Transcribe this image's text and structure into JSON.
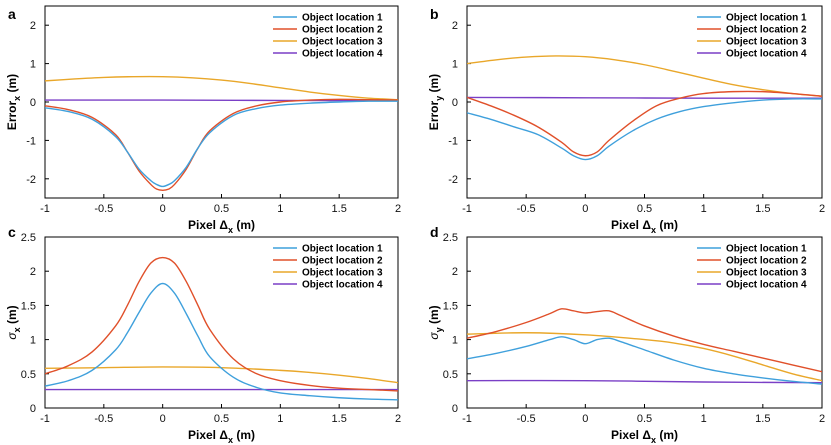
{
  "chart_data": [
    {
      "panel": "a",
      "type": "line",
      "xlabel_main": "Pixel Δ",
      "xlabel_sub": "x",
      "xlabel_unit": " (m)",
      "ylabel_main": "Error",
      "ylabel_sub": "x",
      "ylabel_unit": " (m)",
      "ylabel_greek": false,
      "xlim": [
        -1,
        2
      ],
      "ylim": [
        -2.5,
        2.5
      ],
      "xticks": [
        -1,
        -0.5,
        0,
        0.5,
        1,
        1.5,
        2
      ],
      "xtick_labels": [
        "-1",
        "-0.5",
        "0",
        "0.5",
        "1",
        "1.5",
        "2"
      ],
      "yticks": [
        -2,
        -1,
        0,
        1,
        2
      ],
      "ytick_labels": [
        "-2",
        "-1",
        "0",
        "1",
        "2"
      ],
      "series": [
        {
          "name": "Object location 1",
          "color": "#3fa0dc",
          "x": [
            -1,
            -0.8,
            -0.6,
            -0.4,
            -0.3,
            -0.2,
            -0.1,
            -0.05,
            0,
            0.05,
            0.1,
            0.2,
            0.3,
            0.4,
            0.6,
            0.8,
            1,
            1.25,
            1.5,
            1.75,
            2
          ],
          "y": [
            -0.15,
            -0.25,
            -0.45,
            -0.9,
            -1.3,
            -1.75,
            -2.05,
            -2.15,
            -2.2,
            -2.15,
            -2.05,
            -1.7,
            -1.2,
            -0.8,
            -0.35,
            -0.17,
            -0.08,
            -0.03,
            0,
            0.02,
            0.02
          ]
        },
        {
          "name": "Object location 2",
          "color": "#e0502a",
          "x": [
            -1,
            -0.8,
            -0.6,
            -0.4,
            -0.3,
            -0.2,
            -0.1,
            -0.05,
            0,
            0.05,
            0.1,
            0.2,
            0.3,
            0.4,
            0.6,
            0.8,
            1,
            1.25,
            1.5,
            1.75,
            2
          ],
          "y": [
            -0.1,
            -0.2,
            -0.4,
            -0.85,
            -1.3,
            -1.8,
            -2.15,
            -2.27,
            -2.3,
            -2.27,
            -2.15,
            -1.75,
            -1.2,
            -0.75,
            -0.3,
            -0.1,
            0,
            0.05,
            0.07,
            0.06,
            0.05
          ]
        },
        {
          "name": "Object location 3",
          "color": "#e9a72a",
          "x": [
            -1,
            -0.75,
            -0.5,
            -0.25,
            0,
            0.25,
            0.5,
            0.75,
            1,
            1.25,
            1.5,
            1.75,
            2
          ],
          "y": [
            0.55,
            0.6,
            0.64,
            0.66,
            0.66,
            0.63,
            0.57,
            0.48,
            0.37,
            0.26,
            0.17,
            0.1,
            0.06
          ]
        },
        {
          "name": "Object location 4",
          "color": "#7a3fc6",
          "x": [
            -1,
            0,
            1,
            2
          ],
          "y": [
            0.05,
            0.05,
            0.04,
            0.03
          ]
        }
      ]
    },
    {
      "panel": "b",
      "type": "line",
      "xlabel_main": "Pixel Δ",
      "xlabel_sub": "x",
      "xlabel_unit": " (m)",
      "ylabel_main": "Error",
      "ylabel_sub": "y",
      "ylabel_unit": " (m)",
      "ylabel_greek": false,
      "xlim": [
        -1,
        2
      ],
      "ylim": [
        -2.5,
        2.5
      ],
      "xticks": [
        -1,
        -0.5,
        0,
        0.5,
        1,
        1.5,
        2
      ],
      "xtick_labels": [
        "-1",
        "-0.5",
        "0",
        "0.5",
        "1",
        "1.5",
        "2"
      ],
      "yticks": [
        -2,
        -1,
        0,
        1,
        2
      ],
      "ytick_labels": [
        "-2",
        "-1",
        "0",
        "1",
        "2"
      ],
      "series": [
        {
          "name": "Object location 1",
          "color": "#3fa0dc",
          "x": [
            -1,
            -0.8,
            -0.6,
            -0.4,
            -0.2,
            -0.1,
            0,
            0.1,
            0.2,
            0.4,
            0.6,
            0.8,
            1,
            1.25,
            1.5,
            1.75,
            2
          ],
          "y": [
            -0.28,
            -0.45,
            -0.65,
            -0.85,
            -1.2,
            -1.4,
            -1.5,
            -1.4,
            -1.15,
            -0.75,
            -0.45,
            -0.25,
            -0.12,
            -0.02,
            0.05,
            0.08,
            0.08
          ]
        },
        {
          "name": "Object location 2",
          "color": "#e0502a",
          "x": [
            -1,
            -0.8,
            -0.6,
            -0.4,
            -0.2,
            -0.1,
            0,
            0.1,
            0.2,
            0.4,
            0.6,
            0.8,
            1,
            1.25,
            1.5,
            1.75,
            2
          ],
          "y": [
            0.12,
            -0.1,
            -0.35,
            -0.65,
            -1.05,
            -1.3,
            -1.4,
            -1.3,
            -1.0,
            -0.5,
            -0.1,
            0.1,
            0.22,
            0.27,
            0.27,
            0.22,
            0.15
          ]
        },
        {
          "name": "Object location 3",
          "color": "#e9a72a",
          "x": [
            -1,
            -0.75,
            -0.5,
            -0.25,
            0,
            0.25,
            0.5,
            0.75,
            1,
            1.25,
            1.5,
            1.75,
            2
          ],
          "y": [
            1.0,
            1.1,
            1.17,
            1.2,
            1.18,
            1.1,
            0.97,
            0.8,
            0.62,
            0.45,
            0.32,
            0.22,
            0.15
          ]
        },
        {
          "name": "Object location 4",
          "color": "#7a3fc6",
          "x": [
            -1,
            0,
            1,
            2
          ],
          "y": [
            0.12,
            0.11,
            0.1,
            0.1
          ]
        }
      ]
    },
    {
      "panel": "c",
      "type": "line",
      "xlabel_main": "Pixel Δ",
      "xlabel_sub": "x",
      "xlabel_unit": " (m)",
      "ylabel_main": "σ",
      "ylabel_sub": "x",
      "ylabel_unit": " (m)",
      "ylabel_greek": true,
      "xlim": [
        -1,
        2
      ],
      "ylim": [
        0,
        2.5
      ],
      "xticks": [
        -1,
        -0.5,
        0,
        0.5,
        1,
        1.5,
        2
      ],
      "xtick_labels": [
        "-1",
        "-0.5",
        "0",
        "0.5",
        "1",
        "1.5",
        "2"
      ],
      "yticks": [
        0,
        0.5,
        1,
        1.5,
        2,
        2.5
      ],
      "ytick_labels": [
        "0",
        "0.5",
        "1",
        "1.5",
        "2",
        "2.5"
      ],
      "series": [
        {
          "name": "Object location 1",
          "color": "#3fa0dc",
          "x": [
            -1,
            -0.8,
            -0.6,
            -0.4,
            -0.3,
            -0.2,
            -0.1,
            0,
            0.1,
            0.2,
            0.3,
            0.4,
            0.6,
            0.8,
            1,
            1.25,
            1.5,
            1.75,
            2
          ],
          "y": [
            0.32,
            0.4,
            0.55,
            0.85,
            1.1,
            1.4,
            1.68,
            1.82,
            1.68,
            1.38,
            1.05,
            0.75,
            0.45,
            0.3,
            0.22,
            0.18,
            0.15,
            0.13,
            0.12
          ]
        },
        {
          "name": "Object location 2",
          "color": "#e0502a",
          "x": [
            -1,
            -0.8,
            -0.6,
            -0.4,
            -0.3,
            -0.2,
            -0.1,
            0,
            0.1,
            0.2,
            0.3,
            0.4,
            0.6,
            0.8,
            1,
            1.25,
            1.5,
            1.75,
            2
          ],
          "y": [
            0.5,
            0.62,
            0.82,
            1.2,
            1.5,
            1.85,
            2.12,
            2.2,
            2.12,
            1.85,
            1.5,
            1.15,
            0.72,
            0.5,
            0.4,
            0.33,
            0.29,
            0.27,
            0.25
          ]
        },
        {
          "name": "Object location 3",
          "color": "#e9a72a",
          "x": [
            -1,
            -0.5,
            0,
            0.5,
            1,
            1.25,
            1.5,
            1.75,
            2
          ],
          "y": [
            0.58,
            0.59,
            0.6,
            0.59,
            0.55,
            0.52,
            0.48,
            0.43,
            0.37
          ]
        },
        {
          "name": "Object location 4",
          "color": "#7a3fc6",
          "x": [
            -1,
            0,
            1,
            2
          ],
          "y": [
            0.27,
            0.27,
            0.27,
            0.27
          ]
        }
      ]
    },
    {
      "panel": "d",
      "type": "line",
      "xlabel_main": "Pixel Δ",
      "xlabel_sub": "x",
      "xlabel_unit": " (m)",
      "ylabel_main": "σ",
      "ylabel_sub": "y",
      "ylabel_unit": " (m)",
      "ylabel_greek": true,
      "xlim": [
        -1,
        2
      ],
      "ylim": [
        0,
        2.5
      ],
      "xticks": [
        -1,
        -0.5,
        0,
        0.5,
        1,
        1.5,
        2
      ],
      "xtick_labels": [
        "-1",
        "-0.5",
        "0",
        "0.5",
        "1",
        "1.5",
        "2"
      ],
      "yticks": [
        0,
        0.5,
        1,
        1.5,
        2,
        2.5
      ],
      "ytick_labels": [
        "0",
        "0.5",
        "1",
        "1.5",
        "2",
        "2.5"
      ],
      "series": [
        {
          "name": "Object location 1",
          "color": "#3fa0dc",
          "x": [
            -1,
            -0.75,
            -0.5,
            -0.3,
            -0.2,
            -0.1,
            0,
            0.1,
            0.2,
            0.3,
            0.5,
            0.75,
            1,
            1.25,
            1.5,
            1.75,
            2
          ],
          "y": [
            0.72,
            0.8,
            0.9,
            1.0,
            1.04,
            1.0,
            0.94,
            1.0,
            1.02,
            0.97,
            0.85,
            0.7,
            0.58,
            0.5,
            0.44,
            0.39,
            0.35
          ]
        },
        {
          "name": "Object location 2",
          "color": "#e0502a",
          "x": [
            -1,
            -0.75,
            -0.5,
            -0.3,
            -0.2,
            -0.1,
            0,
            0.1,
            0.2,
            0.3,
            0.5,
            0.75,
            1,
            1.25,
            1.5,
            1.75,
            2
          ],
          "y": [
            1.02,
            1.12,
            1.25,
            1.38,
            1.45,
            1.42,
            1.39,
            1.41,
            1.42,
            1.35,
            1.2,
            1.05,
            0.93,
            0.83,
            0.73,
            0.63,
            0.53
          ]
        },
        {
          "name": "Object location 3",
          "color": "#e9a72a",
          "x": [
            -1,
            -0.5,
            0,
            0.5,
            0.75,
            1,
            1.25,
            1.5,
            1.75,
            2
          ],
          "y": [
            1.08,
            1.1,
            1.07,
            1.0,
            0.95,
            0.87,
            0.76,
            0.63,
            0.5,
            0.4
          ]
        },
        {
          "name": "Object location 4",
          "color": "#7a3fc6",
          "x": [
            -1,
            0,
            1,
            2
          ],
          "y": [
            0.4,
            0.4,
            0.38,
            0.37
          ]
        }
      ]
    }
  ]
}
